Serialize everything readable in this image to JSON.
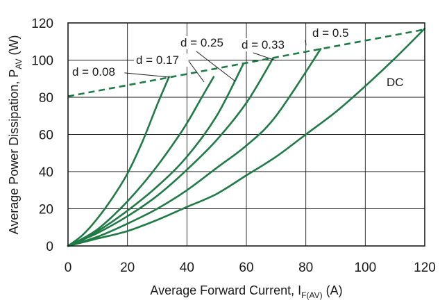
{
  "chart_data": {
    "type": "line",
    "xlabel_main": "Average Forward Current, I",
    "xlabel_sub": "F(AV)",
    "xlabel_tail": " (A)",
    "ylabel_main": "Average Power Dissipation, P",
    "ylabel_sub": "AV",
    "ylabel_tail": " (W)",
    "xlim": [
      0,
      120
    ],
    "ylim": [
      0,
      120
    ],
    "xticks": [
      0,
      20,
      40,
      60,
      80,
      100,
      120
    ],
    "yticks": [
      0,
      20,
      40,
      60,
      80,
      100,
      120
    ],
    "grid": true,
    "colors": {
      "curve": "#1f7a45",
      "grid": "#1a1a1a"
    },
    "series": [
      {
        "name": "d = 0.08",
        "x": [
          0,
          5,
          10,
          15,
          20,
          25,
          30,
          34
        ],
        "y": [
          0,
          6,
          15,
          26,
          39,
          56,
          76,
          91
        ]
      },
      {
        "name": "d = 0.17",
        "x": [
          0,
          5,
          10,
          15,
          20,
          25,
          30,
          35,
          40,
          45,
          49
        ],
        "y": [
          0,
          4,
          9,
          16,
          24,
          33,
          43,
          54,
          66,
          80,
          91
        ]
      },
      {
        "name": "d = 0.25",
        "x": [
          0,
          10,
          20,
          30,
          40,
          50,
          59
        ],
        "y": [
          0,
          8,
          19,
          32,
          48,
          70,
          98
        ]
      },
      {
        "name": "d = 0.33",
        "x": [
          0,
          10,
          20,
          30,
          40,
          50,
          60,
          69
        ],
        "y": [
          0,
          7,
          16,
          27,
          41,
          57,
          77,
          101
        ]
      },
      {
        "name": "d = 0.5",
        "x": [
          0,
          10,
          20,
          30,
          40,
          50,
          60,
          70,
          85
        ],
        "y": [
          0,
          5,
          12,
          20,
          30,
          42,
          54,
          70,
          106
        ]
      },
      {
        "name": "DC",
        "x": [
          0,
          10,
          20,
          30,
          40,
          50,
          60,
          70,
          80,
          90,
          100,
          110,
          120
        ],
        "y": [
          0,
          4,
          8,
          14,
          21,
          28,
          38,
          48,
          60,
          72,
          86,
          101,
          117
        ]
      }
    ],
    "envelope": {
      "x": [
        0,
        120
      ],
      "y": [
        80.5,
        116.5
      ]
    },
    "annotations": [
      {
        "text": "d = 0.08"
      },
      {
        "text": "d = 0.17"
      },
      {
        "text": "d = 0.25"
      },
      {
        "text": "d = 0.33"
      },
      {
        "text": "d = 0.5"
      },
      {
        "text": "DC"
      }
    ]
  }
}
